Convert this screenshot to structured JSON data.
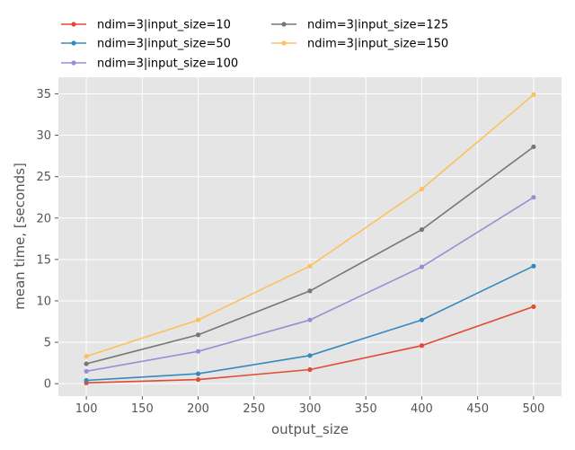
{
  "chart_data": {
    "type": "line",
    "title": "",
    "xlabel": "output_size",
    "ylabel": "mean time, [seconds]",
    "x": [
      100,
      200,
      300,
      400,
      500
    ],
    "xlim": [
      75,
      525
    ],
    "ylim": [
      -1.5,
      37
    ],
    "xticks": [
      100,
      150,
      200,
      250,
      300,
      350,
      400,
      450,
      500
    ],
    "yticks": [
      0,
      5,
      10,
      15,
      20,
      25,
      30,
      35
    ],
    "grid": true,
    "legend_position": "top-left, outside plot, two columns",
    "series": [
      {
        "name": "ndim=3|input_size=10",
        "color": "#E24A33",
        "values": [
          0.1,
          0.5,
          1.7,
          4.6,
          9.3
        ]
      },
      {
        "name": "ndim=3|input_size=50",
        "color": "#348ABD",
        "values": [
          0.4,
          1.2,
          3.4,
          7.7,
          14.2
        ]
      },
      {
        "name": "ndim=3|input_size=100",
        "color": "#988ED5",
        "values": [
          1.5,
          3.9,
          7.7,
          14.1,
          22.5
        ]
      },
      {
        "name": "ndim=3|input_size=125",
        "color": "#777777",
        "values": [
          2.4,
          5.9,
          11.2,
          18.6,
          28.6
        ]
      },
      {
        "name": "ndim=3|input_size=150",
        "color": "#FBC15E",
        "values": [
          3.3,
          7.7,
          14.2,
          23.5,
          34.9
        ]
      }
    ]
  }
}
